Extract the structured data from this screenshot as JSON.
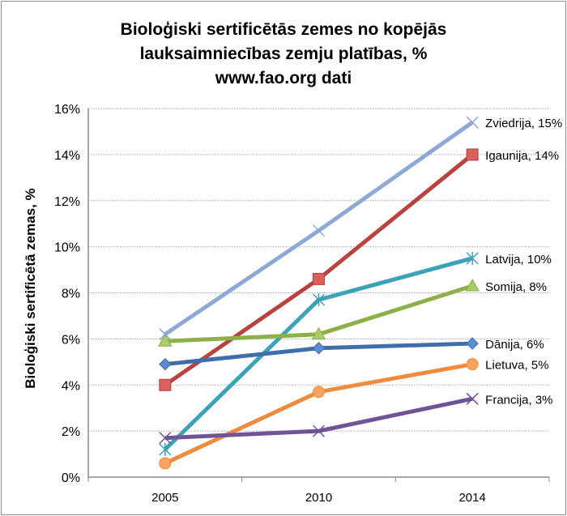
{
  "chart_data": {
    "type": "line",
    "title": [
      "Bioloģiski sertificētās zemes no kopējās",
      "lauksaimniecības zemju platības, %",
      "www.fao.org dati"
    ],
    "xlabel": "",
    "ylabel": "Bioloģiski sertificētā zemas, %",
    "categories": [
      "2005",
      "2010",
      "2014"
    ],
    "ylim": [
      0,
      16
    ],
    "yticks": [
      "0%",
      "2%",
      "4%",
      "6%",
      "8%",
      "10%",
      "12%",
      "14%",
      "16%"
    ],
    "grid": true,
    "legend": "none",
    "series": [
      {
        "name": "Zviedrija",
        "label": "Zviedrija, 15%",
        "values": [
          6.2,
          10.7,
          15.4
        ],
        "color": "#8EA9D6",
        "marker": "x"
      },
      {
        "name": "Igaunija",
        "label": "Igaunija, 14%",
        "values": [
          4.0,
          8.6,
          14.0
        ],
        "color": "#B8433F",
        "marker": "square"
      },
      {
        "name": "Latvija",
        "label": "Latvija, 10%",
        "values": [
          1.2,
          7.7,
          9.5
        ],
        "color": "#3BA2B8",
        "marker": "star"
      },
      {
        "name": "Somija",
        "label": "Somija, 8%",
        "values": [
          5.9,
          6.2,
          8.3
        ],
        "color": "#8CB04A",
        "marker": "triangle"
      },
      {
        "name": "Dānija",
        "label": "Dānija, 6%",
        "values": [
          4.9,
          5.6,
          5.8
        ],
        "color": "#3F6EAA",
        "marker": "diamond"
      },
      {
        "name": "Lietuva",
        "label": "Lietuva, 5%",
        "values": [
          0.6,
          3.7,
          4.9
        ],
        "color": "#F08A3C",
        "marker": "circle"
      },
      {
        "name": "Francija",
        "label": "Francija, 3%",
        "values": [
          1.7,
          2.0,
          3.4
        ],
        "color": "#6F5396",
        "marker": "x"
      }
    ]
  }
}
